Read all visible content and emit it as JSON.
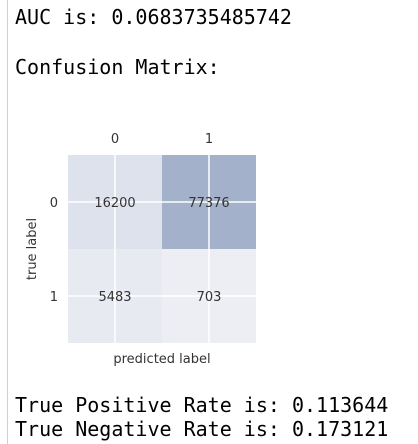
{
  "output": {
    "auc_label": "AUC is:",
    "auc_value": "0.0683735485742",
    "confusion_heading": "Confusion Matrix:",
    "tpr_label": "True Positive Rate is:",
    "tpr_value": "0.113644",
    "tnr_label": "True Negative Rate is:",
    "tnr_value": "0.173121"
  },
  "chart_data": {
    "type": "heatmap",
    "xlabel": "predicted label",
    "ylabel": "true label",
    "x_categories": [
      "0",
      "1"
    ],
    "y_categories": [
      "0",
      "1"
    ],
    "values": [
      [
        16200,
        77376
      ],
      [
        5483,
        703
      ]
    ],
    "grid": true,
    "color_low": "#edeef4",
    "color_high": "#a3b2ca"
  }
}
